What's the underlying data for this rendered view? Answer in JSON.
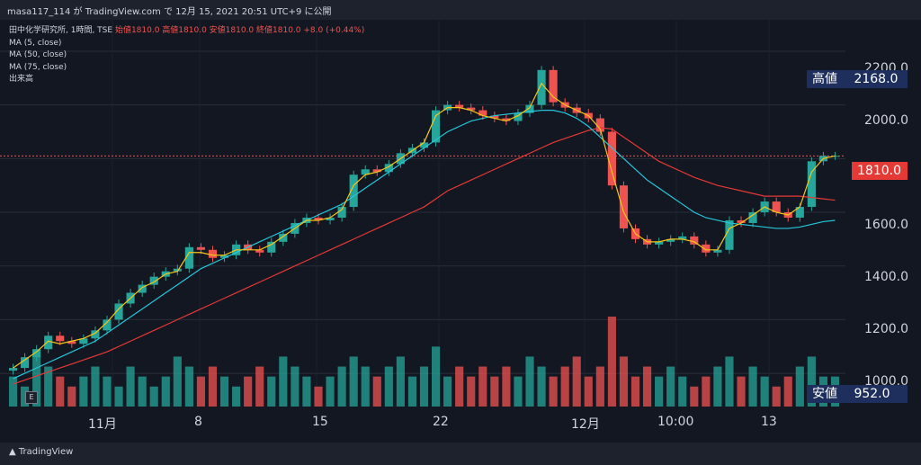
{
  "header": {
    "author": "masa117_114",
    "site": "TradingView.com",
    "timestamp": "12月 15, 2021 20:51 UTC+9",
    "text": "masa117_114 が TradingView.com で 12月 15, 2021 20:51 UTC+9 に公開"
  },
  "legend": {
    "symbol_line": "田中化学研究所, 1時間, TSE",
    "ohlc": "始値1810.0 高値1810.0 安値1810.0 終値1810.0 +8.0 (+0.44%)",
    "indicators": [
      "MA (5, close)",
      "MA (50, close)",
      "MA (75, close)",
      "出来高"
    ]
  },
  "price_axis": {
    "ticks": [
      "2200.0",
      "2000.0",
      "1800.0",
      "1600.0",
      "1400.0",
      "1200.0",
      "1000.0"
    ],
    "high_label": "高値",
    "high_value": "2168.0",
    "current_value": "1810.0",
    "low_label": "安値",
    "low_value": "952.0"
  },
  "time_axis": {
    "labels": [
      "11月",
      "8",
      "15",
      "22",
      "12月",
      "10:00",
      "13"
    ]
  },
  "footer": {
    "brand": "TradingView"
  },
  "controls": {
    "e_button": "E"
  },
  "colors": {
    "background": "#131722",
    "up": "#26a69a",
    "down": "#ef5350",
    "ma5": "#f5c518",
    "ma50": "#26c6da",
    "ma75": "#e53935",
    "badge_navy": "#1e2f5e",
    "badge_red": "#e53935"
  },
  "chart_data": {
    "type": "candlestick",
    "ylim": [
      950,
      2230
    ],
    "yticks": [
      1000,
      1200,
      1400,
      1600,
      1800,
      2000,
      2200
    ],
    "current_price": 1810.0,
    "high": 2168.0,
    "low": 952.0,
    "close_series": [
      1020,
      1060,
      1090,
      1140,
      1120,
      1110,
      1130,
      1160,
      1200,
      1260,
      1300,
      1330,
      1360,
      1380,
      1390,
      1470,
      1460,
      1430,
      1440,
      1480,
      1460,
      1450,
      1490,
      1520,
      1560,
      1580,
      1570,
      1580,
      1620,
      1740,
      1760,
      1750,
      1780,
      1820,
      1840,
      1860,
      1980,
      2000,
      1990,
      1980,
      1960,
      1950,
      1940,
      1970,
      2000,
      2130,
      2010,
      1990,
      1970,
      1950,
      1900,
      1700,
      1540,
      1500,
      1480,
      1490,
      1500,
      1510,
      1480,
      1450,
      1460,
      1570,
      1560,
      1600,
      1640,
      1600,
      1580,
      1620,
      1790,
      1810,
      1810
    ],
    "ma5_series": [
      1020,
      1050,
      1080,
      1120,
      1110,
      1120,
      1130,
      1150,
      1190,
      1240,
      1280,
      1320,
      1340,
      1370,
      1380,
      1450,
      1450,
      1440,
      1440,
      1460,
      1460,
      1460,
      1480,
      1510,
      1540,
      1570,
      1570,
      1580,
      1610,
      1700,
      1740,
      1750,
      1770,
      1800,
      1830,
      1860,
      1960,
      1990,
      1990,
      1980,
      1960,
      1950,
      1940,
      1960,
      1990,
      2080,
      2030,
      2000,
      1980,
      1960,
      1910,
      1750,
      1600,
      1520,
      1490,
      1490,
      1500,
      1500,
      1490,
      1460,
      1460,
      1540,
      1560,
      1590,
      1620,
      1600,
      1590,
      1620,
      1750,
      1800,
      1810
    ],
    "ma50_series": [
      980,
      1000,
      1020,
      1040,
      1060,
      1080,
      1100,
      1120,
      1150,
      1180,
      1210,
      1240,
      1270,
      1300,
      1330,
      1360,
      1390,
      1410,
      1430,
      1450,
      1470,
      1490,
      1510,
      1530,
      1550,
      1570,
      1590,
      1610,
      1630,
      1660,
      1690,
      1720,
      1750,
      1780,
      1810,
      1840,
      1870,
      1900,
      1920,
      1940,
      1950,
      1960,
      1965,
      1970,
      1975,
      1980,
      1980,
      1970,
      1950,
      1920,
      1880,
      1840,
      1800,
      1760,
      1720,
      1690,
      1660,
      1630,
      1600,
      1580,
      1570,
      1560,
      1555,
      1550,
      1545,
      1540,
      1540,
      1545,
      1555,
      1565,
      1570
    ],
    "ma75_series": [
      960,
      975,
      990,
      1005,
      1020,
      1035,
      1050,
      1065,
      1080,
      1100,
      1120,
      1140,
      1160,
      1180,
      1200,
      1220,
      1240,
      1260,
      1280,
      1300,
      1320,
      1340,
      1360,
      1380,
      1400,
      1420,
      1440,
      1460,
      1480,
      1500,
      1520,
      1540,
      1560,
      1580,
      1600,
      1620,
      1650,
      1680,
      1700,
      1720,
      1740,
      1760,
      1780,
      1800,
      1820,
      1840,
      1860,
      1875,
      1890,
      1905,
      1915,
      1910,
      1880,
      1850,
      1820,
      1790,
      1770,
      1750,
      1730,
      1715,
      1700,
      1690,
      1680,
      1670,
      1660,
      1660,
      1660,
      1660,
      1655,
      1650,
      1645
    ],
    "volume_series": [
      3,
      2,
      5,
      4,
      3,
      2,
      3,
      4,
      3,
      2,
      4,
      3,
      2,
      3,
      5,
      4,
      3,
      4,
      3,
      2,
      3,
      4,
      3,
      5,
      4,
      3,
      2,
      3,
      4,
      5,
      4,
      3,
      4,
      5,
      3,
      4,
      6,
      3,
      4,
      3,
      4,
      3,
      4,
      3,
      5,
      4,
      3,
      4,
      5,
      3,
      4,
      9,
      5,
      3,
      4,
      3,
      4,
      3,
      2,
      3,
      4,
      5,
      3,
      4,
      3,
      2,
      3,
      4,
      5,
      3,
      3
    ]
  }
}
